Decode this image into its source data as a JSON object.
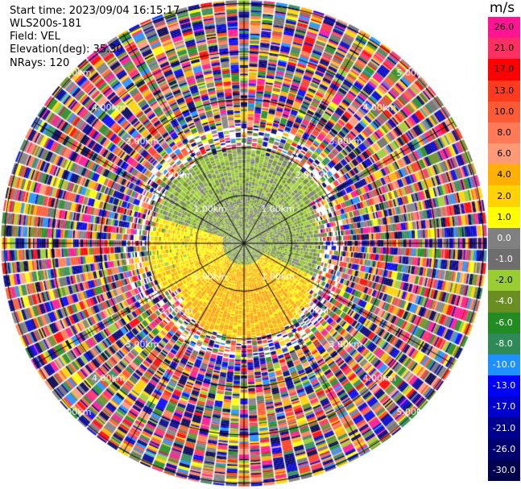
{
  "header": {
    "start_time": "Start time: 2023/09/04 16:15:17",
    "site": "WLS200s-181",
    "field": "Field: VEL",
    "elevation": "Elevation(deg): 35.30",
    "nrays": "NRays: 120"
  },
  "colorbar": {
    "unit": "m/s",
    "ticks": [
      "26.0",
      "21.0",
      "17.0",
      "13.0",
      "10.0",
      "8.0",
      "6.0",
      "4.0",
      "2.0",
      "1.0",
      "0.0",
      "-1.0",
      "-2.0",
      "-4.0",
      "-6.0",
      "-8.0",
      "-10.0",
      "-13.0",
      "-17.0",
      "-21.0",
      "-26.0",
      "-30.0"
    ],
    "colors": [
      "#ff1493",
      "#ff2e63",
      "#ff0000",
      "#ff3b1f",
      "#ff5a36",
      "#ff7b57",
      "#ff9a77",
      "#ffb000",
      "#ffd200",
      "#ffff00",
      "#808080",
      "#6e6e6e",
      "#9acd32",
      "#6b8e23",
      "#228b22",
      "#2e8b57",
      "#1e90ff",
      "#0000ff",
      "#0000cd",
      "#000090",
      "#000070",
      "#000050"
    ]
  },
  "chart_data": {
    "type": "heatmap",
    "projection": "polar PPI (plan position indicator)",
    "field": "VEL",
    "rays": 120,
    "range_rings_km": [
      1.0,
      2.0,
      3.0,
      4.0,
      5.0
    ],
    "ring_labels": [
      "1.00km",
      "2.00km",
      "3.00km",
      "4.00km",
      "5.00km"
    ],
    "ranges": [
      {
        "from_km": 0.0,
        "to_km": 1.0,
        "pattern": "mixed near-zero: north half green/gray, south half yellow/orange"
      },
      {
        "from_km": 1.0,
        "to_km": 1.6,
        "pattern": "north green/gray, east green, south orange/yellow, west yellow"
      },
      {
        "from_km": 1.6,
        "to_km": 2.4,
        "pattern": "partially noisy"
      },
      {
        "from_km": 2.4,
        "to_km": 5.6,
        "pattern": "noise, full colour range"
      }
    ]
  }
}
